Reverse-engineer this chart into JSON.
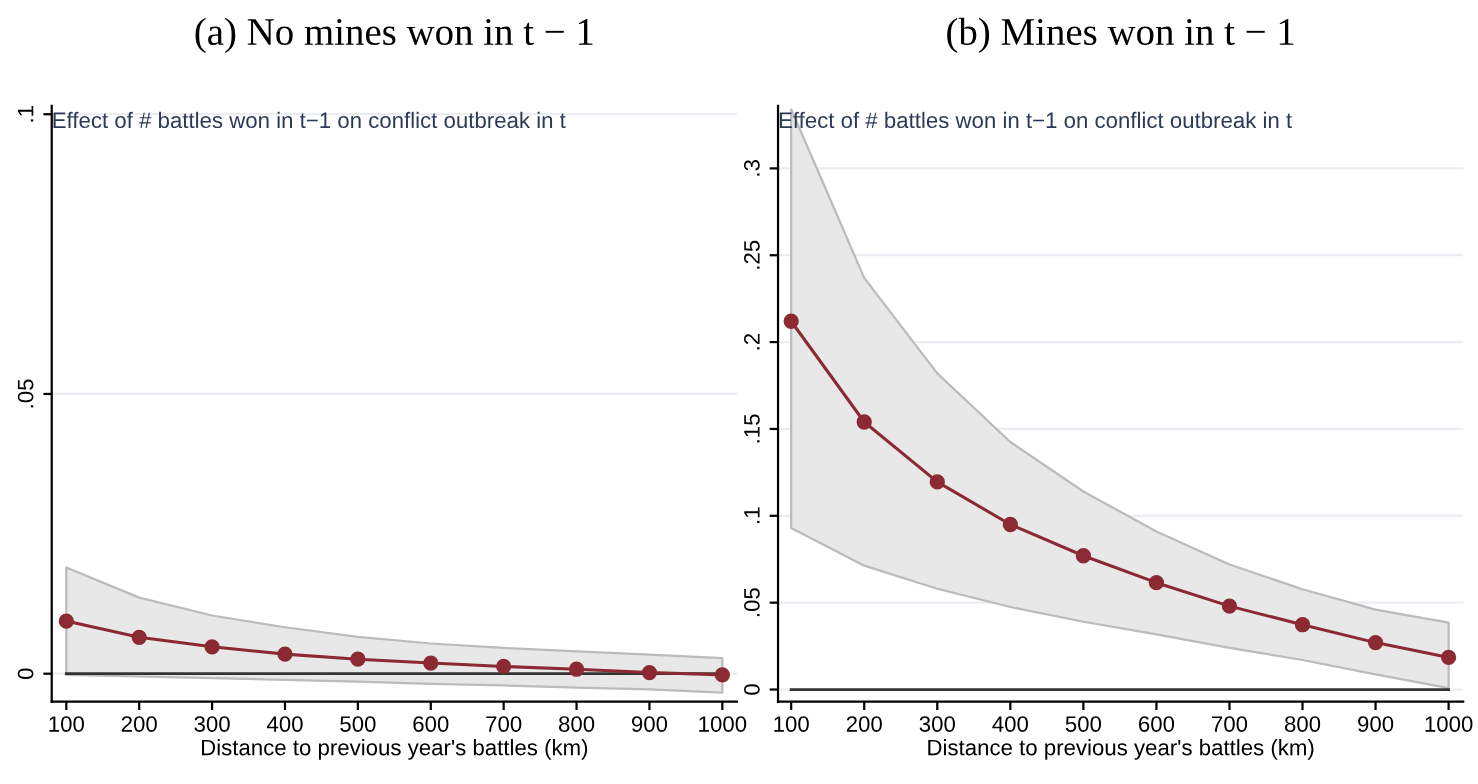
{
  "chart_data": [
    {
      "type": "line",
      "title": "(a) No mines won in t − 1",
      "xlabel": "Distance to previous year's battles (km)",
      "annotations": [
        "Effect of # battles won in t−1 on conflict outbreak in t"
      ],
      "x": [
        100,
        200,
        300,
        400,
        500,
        600,
        700,
        800,
        900,
        1000
      ],
      "series": [
        {
          "color": "#8b2a32",
          "values": [
            0.0094,
            0.0065,
            0.0048,
            0.0035,
            0.0026,
            0.0019,
            0.0013,
            0.0008,
            0.0002,
            -0.0002
          ],
          "lower": [
            -0.0002,
            -0.0005,
            -0.0008,
            -0.0011,
            -0.0014,
            -0.0018,
            -0.0021,
            -0.0025,
            -0.0028,
            -0.0034
          ],
          "upper": [
            0.019,
            0.0136,
            0.0104,
            0.0083,
            0.0066,
            0.0054,
            0.0046,
            0.004,
            0.0034,
            0.0028
          ]
        }
      ],
      "xlim": [
        80,
        1020
      ],
      "xticks": [
        100,
        200,
        300,
        400,
        500,
        600,
        700,
        800,
        900,
        1000
      ],
      "ylim": [
        -0.005,
        0.1015
      ],
      "yticks": [
        {
          "value": 0,
          "label": "0"
        },
        {
          "value": 0.05,
          "label": ".05"
        },
        {
          "value": 0.1,
          "label": ".1"
        }
      ],
      "ref_lines": [
        {
          "axis": "y",
          "value": 0,
          "color": "#333333"
        }
      ],
      "grid": "y",
      "marker": "circle",
      "line_style": "solid",
      "legend": false
    },
    {
      "type": "line",
      "title": "(b) Mines won in t − 1",
      "xlabel": "Distance to previous year's battles (km)",
      "annotations": [
        "Effect of # battles won in t−1 on conflict outbreak in t"
      ],
      "x": [
        100,
        200,
        300,
        400,
        500,
        600,
        700,
        800,
        900,
        1000
      ],
      "series": [
        {
          "color": "#8b2a32",
          "values": [
            0.212,
            0.154,
            0.1195,
            0.095,
            0.077,
            0.0615,
            0.048,
            0.0373,
            0.027,
            0.0185
          ],
          "lower": [
            0.093,
            0.0713,
            0.058,
            0.0475,
            0.039,
            0.0317,
            0.024,
            0.017,
            0.0087,
            0.0008
          ],
          "upper": [
            0.334,
            0.237,
            0.182,
            0.1425,
            0.114,
            0.091,
            0.072,
            0.0577,
            0.046,
            0.0385
          ]
        }
      ],
      "xlim": [
        82,
        1020
      ],
      "xticks": [
        100,
        200,
        300,
        400,
        500,
        600,
        700,
        800,
        900,
        1000
      ],
      "ylim": [
        -0.007,
        0.336
      ],
      "yticks": [
        {
          "value": 0,
          "label": "0"
        },
        {
          "value": 0.05,
          "label": ".05"
        },
        {
          "value": 0.1,
          "label": ".1"
        },
        {
          "value": 0.15,
          "label": ".15"
        },
        {
          "value": 0.2,
          "label": ".2"
        },
        {
          "value": 0.25,
          "label": ".25"
        },
        {
          "value": 0.3,
          "label": ".3"
        }
      ],
      "ref_lines": [
        {
          "axis": "y",
          "value": 0,
          "color": "#333333"
        }
      ],
      "grid": "y",
      "marker": "circle",
      "line_style": "solid",
      "legend": false
    }
  ]
}
